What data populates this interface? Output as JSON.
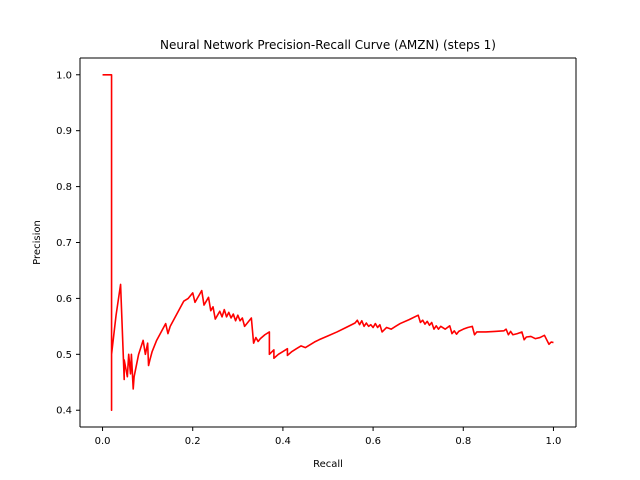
{
  "chart_data": {
    "type": "line",
    "title": "Neural Network Precision-Recall Curve (AMZN) (steps 1)",
    "xlabel": "Recall",
    "ylabel": "Precision",
    "xlim": [
      -0.05,
      1.05
    ],
    "ylim": [
      0.37,
      1.03
    ],
    "xticks": [
      0.0,
      0.2,
      0.4,
      0.6,
      0.8,
      1.0
    ],
    "xtick_labels": [
      "0.0",
      "0.2",
      "0.4",
      "0.6",
      "0.8",
      "1.0"
    ],
    "yticks": [
      0.4,
      0.5,
      0.6,
      0.7,
      0.8,
      0.9,
      1.0
    ],
    "ytick_labels": [
      "0.4",
      "0.5",
      "0.6",
      "0.7",
      "0.8",
      "0.9",
      "1.0"
    ],
    "grid": false,
    "legend": "none",
    "series": [
      {
        "color": "#ff0000",
        "x": [
          0.0,
          0.02,
          0.02,
          0.02,
          0.03,
          0.04,
          0.048,
          0.048,
          0.055,
          0.058,
          0.062,
          0.064,
          0.068,
          0.07,
          0.08,
          0.09,
          0.095,
          0.1,
          0.102,
          0.105,
          0.11,
          0.12,
          0.13,
          0.14,
          0.145,
          0.15,
          0.16,
          0.17,
          0.18,
          0.19,
          0.2,
          0.205,
          0.21,
          0.215,
          0.22,
          0.225,
          0.23,
          0.235,
          0.24,
          0.245,
          0.25,
          0.255,
          0.26,
          0.265,
          0.27,
          0.275,
          0.28,
          0.285,
          0.29,
          0.295,
          0.3,
          0.305,
          0.31,
          0.315,
          0.32,
          0.33,
          0.335,
          0.34,
          0.345,
          0.35,
          0.36,
          0.37,
          0.37,
          0.38,
          0.38,
          0.39,
          0.4,
          0.41,
          0.41,
          0.42,
          0.43,
          0.44,
          0.45,
          0.46,
          0.47,
          0.48,
          0.5,
          0.52,
          0.54,
          0.56,
          0.565,
          0.57,
          0.575,
          0.58,
          0.585,
          0.59,
          0.595,
          0.6,
          0.605,
          0.61,
          0.615,
          0.62,
          0.63,
          0.64,
          0.65,
          0.66,
          0.68,
          0.7,
          0.705,
          0.71,
          0.715,
          0.72,
          0.725,
          0.73,
          0.735,
          0.74,
          0.745,
          0.75,
          0.76,
          0.77,
          0.775,
          0.78,
          0.785,
          0.79,
          0.8,
          0.81,
          0.82,
          0.825,
          0.83,
          0.85,
          0.87,
          0.89,
          0.895,
          0.9,
          0.905,
          0.91,
          0.92,
          0.93,
          0.935,
          0.94,
          0.95,
          0.96,
          0.97,
          0.98,
          0.99,
          0.995,
          1.0
        ],
        "y": [
          1.0,
          1.0,
          0.4,
          0.5,
          0.57,
          0.625,
          0.455,
          0.49,
          0.46,
          0.5,
          0.465,
          0.5,
          0.438,
          0.46,
          0.5,
          0.525,
          0.5,
          0.52,
          0.48,
          0.49,
          0.505,
          0.525,
          0.54,
          0.555,
          0.537,
          0.55,
          0.565,
          0.58,
          0.595,
          0.6,
          0.61,
          0.593,
          0.6,
          0.607,
          0.614,
          0.588,
          0.595,
          0.602,
          0.578,
          0.585,
          0.563,
          0.57,
          0.577,
          0.567,
          0.58,
          0.567,
          0.575,
          0.565,
          0.572,
          0.56,
          0.57,
          0.56,
          0.565,
          0.55,
          0.555,
          0.565,
          0.52,
          0.53,
          0.523,
          0.528,
          0.535,
          0.54,
          0.5,
          0.508,
          0.493,
          0.5,
          0.505,
          0.51,
          0.498,
          0.505,
          0.51,
          0.515,
          0.512,
          0.517,
          0.522,
          0.526,
          0.533,
          0.54,
          0.548,
          0.556,
          0.561,
          0.553,
          0.56,
          0.55,
          0.556,
          0.55,
          0.553,
          0.548,
          0.555,
          0.548,
          0.553,
          0.54,
          0.548,
          0.545,
          0.55,
          0.555,
          0.562,
          0.57,
          0.557,
          0.561,
          0.554,
          0.559,
          0.552,
          0.557,
          0.545,
          0.551,
          0.545,
          0.55,
          0.545,
          0.551,
          0.537,
          0.542,
          0.536,
          0.541,
          0.545,
          0.548,
          0.55,
          0.535,
          0.54,
          0.54,
          0.541,
          0.542,
          0.545,
          0.535,
          0.541,
          0.535,
          0.537,
          0.54,
          0.526,
          0.531,
          0.532,
          0.528,
          0.53,
          0.534,
          0.518,
          0.522,
          0.521
        ]
      }
    ]
  }
}
